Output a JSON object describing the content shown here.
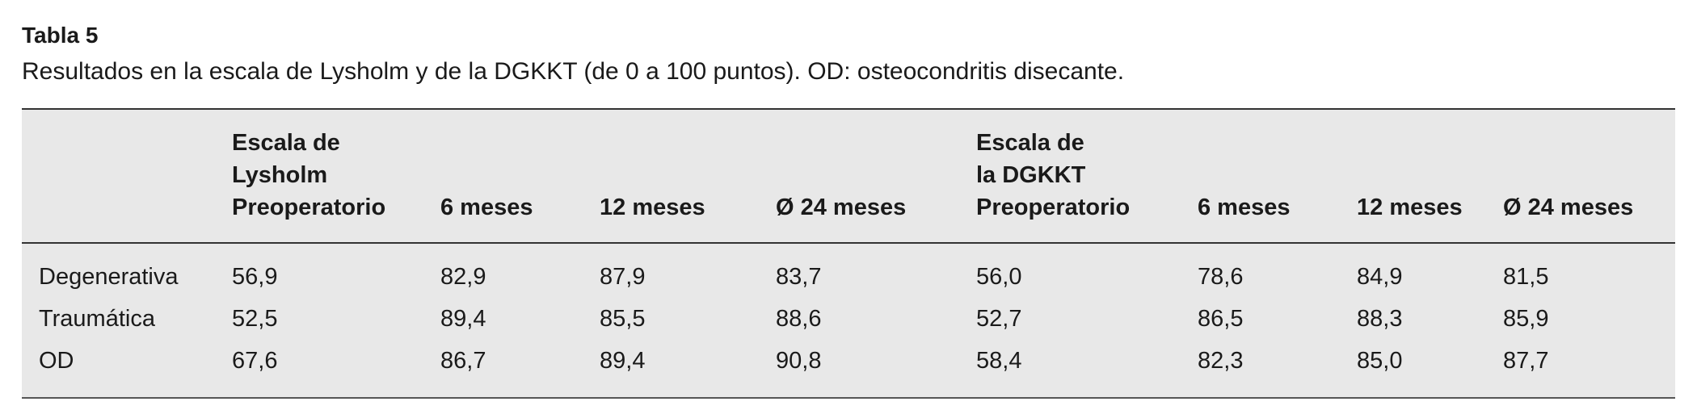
{
  "title": "Tabla 5",
  "caption": "Resultados en la escala de Lysholm y de la DGKKT (de 0 a 100 puntos). OD: osteocondritis disecante.",
  "table": {
    "header": [
      [
        "Escala de",
        "Lysholm",
        "Preoperatorio"
      ],
      [
        "6 meses"
      ],
      [
        "12 meses"
      ],
      [
        "Ø 24 meses"
      ],
      [
        "Escala de",
        "la DGKKT",
        "Preoperatorio"
      ],
      [
        "6 meses"
      ],
      [
        "12 meses"
      ],
      [
        "Ø 24 meses"
      ]
    ],
    "rows": [
      [
        "Degenerativa",
        "56,9",
        "82,9",
        "87,9",
        "83,7",
        "56,0",
        "78,6",
        "84,9",
        "81,5"
      ],
      [
        "Traumática",
        "52,5",
        "89,4",
        "85,5",
        "88,6",
        "52,7",
        "86,5",
        "88,3",
        "85,9"
      ],
      [
        "OD",
        "67,6",
        "86,7",
        "89,4",
        "90,8",
        "58,4",
        "82,3",
        "85,0",
        "87,7"
      ]
    ]
  }
}
